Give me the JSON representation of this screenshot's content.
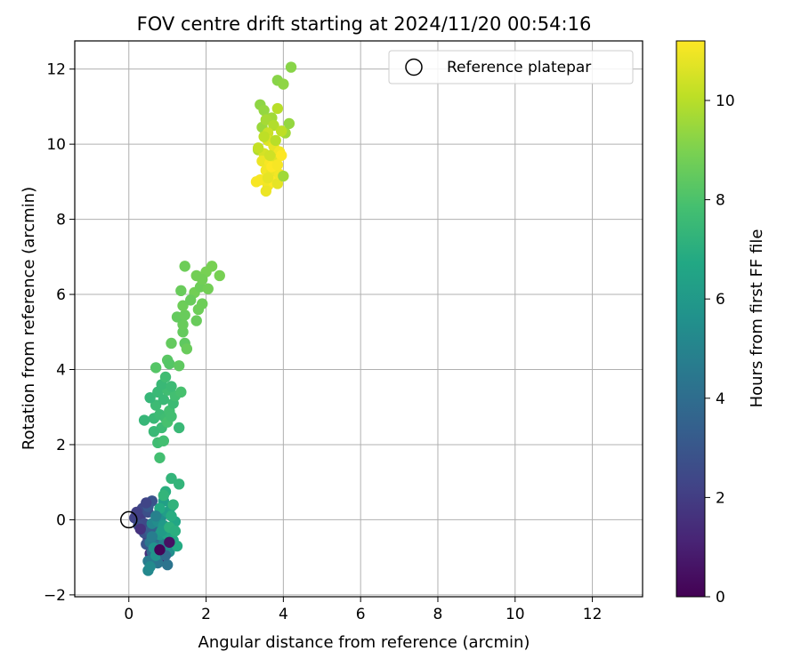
{
  "chart_data": {
    "type": "scatter",
    "title": "FOV centre drift starting at 2024/11/20 00:54:16",
    "xlabel": "Angular distance from reference (arcmin)",
    "ylabel": "Rotation from reference (arcmin)",
    "xlim": [
      -1.4,
      13.3
    ],
    "ylim": [
      -2.05,
      12.75
    ],
    "xticks": [
      0,
      2,
      4,
      6,
      8,
      10,
      12
    ],
    "yticks": [
      -2,
      0,
      2,
      4,
      6,
      8,
      10,
      12
    ],
    "grid": true,
    "legend": {
      "placement": "top-right",
      "entries": [
        "Reference platepar"
      ]
    },
    "reference_point": {
      "x": 0,
      "y": 0,
      "label": "Reference platepar"
    },
    "colorbar": {
      "label": "Hours from first FF file",
      "colormap": "viridis",
      "range": [
        0,
        11.2
      ],
      "ticks": [
        0,
        2,
        4,
        6,
        8,
        10
      ]
    },
    "series": [
      {
        "points": [
          {
            "x": 0.75,
            "y": -0.85,
            "c": 0.3
          },
          {
            "x": 1.0,
            "y": -0.8,
            "c": 0.6
          },
          {
            "x": 0.85,
            "y": -0.6,
            "c": 0.9
          },
          {
            "x": 0.6,
            "y": -0.7,
            "c": 1.2
          },
          {
            "x": 0.9,
            "y": -1.0,
            "c": 0.4
          },
          {
            "x": 0.7,
            "y": -0.4,
            "c": 1.0
          },
          {
            "x": 0.55,
            "y": -0.9,
            "c": 1.5
          },
          {
            "x": 0.95,
            "y": -0.5,
            "c": 0.8
          },
          {
            "x": 0.5,
            "y": -0.5,
            "c": 1.8
          },
          {
            "x": 0.65,
            "y": -0.2,
            "c": 1.4
          },
          {
            "x": 0.3,
            "y": 0.1,
            "c": 2.0
          },
          {
            "x": 0.15,
            "y": 0.05,
            "c": 2.2
          },
          {
            "x": 0.4,
            "y": -0.1,
            "c": 2.5
          },
          {
            "x": 0.35,
            "y": 0.3,
            "c": 2.4
          },
          {
            "x": 0.5,
            "y": 0.2,
            "c": 2.7
          },
          {
            "x": 0.6,
            "y": 0.5,
            "c": 2.9
          },
          {
            "x": 0.5,
            "y": 0.35,
            "c": 3.1
          },
          {
            "x": 0.4,
            "y": -0.35,
            "c": 2.8
          },
          {
            "x": 0.25,
            "y": -0.15,
            "c": 2.6
          },
          {
            "x": 0.45,
            "y": -0.65,
            "c": 3.0
          },
          {
            "x": 0.55,
            "y": -0.3,
            "c": 3.3
          },
          {
            "x": 0.7,
            "y": -0.55,
            "c": 3.5
          },
          {
            "x": 0.6,
            "y": -0.85,
            "c": 3.8
          },
          {
            "x": 0.8,
            "y": -0.25,
            "c": 3.6
          },
          {
            "x": 0.65,
            "y": -1.05,
            "c": 4.0
          },
          {
            "x": 0.85,
            "y": -0.9,
            "c": 4.2
          },
          {
            "x": 0.75,
            "y": -1.15,
            "c": 4.4
          },
          {
            "x": 0.5,
            "y": -1.1,
            "c": 4.6
          },
          {
            "x": 0.7,
            "y": -0.7,
            "c": 4.1
          },
          {
            "x": 0.9,
            "y": -0.65,
            "c": 4.8
          },
          {
            "x": 0.55,
            "y": -0.6,
            "c": 4.5
          },
          {
            "x": 0.95,
            "y": -0.35,
            "c": 5.0
          },
          {
            "x": 1.0,
            "y": -1.2,
            "c": 4.3
          },
          {
            "x": 0.5,
            "y": -1.35,
            "c": 5.2
          },
          {
            "x": 0.6,
            "y": -0.1,
            "c": 5.1
          },
          {
            "x": 0.75,
            "y": -0.05,
            "c": 5.4
          },
          {
            "x": 0.85,
            "y": 0.1,
            "c": 5.6
          },
          {
            "x": 0.55,
            "y": -1.25,
            "c": 5.3
          },
          {
            "x": 0.65,
            "y": -0.75,
            "c": 5.7
          },
          {
            "x": 0.8,
            "y": -0.4,
            "c": 5.9
          },
          {
            "x": 1.05,
            "y": -0.85,
            "c": 5.5
          },
          {
            "x": 0.7,
            "y": -0.95,
            "c": 5.8
          },
          {
            "x": 0.9,
            "y": -0.15,
            "c": 6.0
          },
          {
            "x": 1.0,
            "y": 0.2,
            "c": 6.2
          },
          {
            "x": 1.1,
            "y": 0.35,
            "c": 6.4
          },
          {
            "x": 0.9,
            "y": 0.5,
            "c": 6.3
          },
          {
            "x": 1.2,
            "y": -0.05,
            "c": 6.6
          },
          {
            "x": 1.0,
            "y": -0.4,
            "c": 6.5
          },
          {
            "x": 1.15,
            "y": -0.55,
            "c": 6.7
          },
          {
            "x": 1.25,
            "y": -0.7,
            "c": 6.8
          },
          {
            "x": 0.85,
            "y": -0.3,
            "c": 6.1
          },
          {
            "x": 1.1,
            "y": 0.1,
            "c": 6.9
          },
          {
            "x": 0.95,
            "y": 0.75,
            "c": 7.0
          },
          {
            "x": 1.05,
            "y": -0.2,
            "c": 7.1
          },
          {
            "x": 1.15,
            "y": 0.4,
            "c": 7.2
          },
          {
            "x": 0.9,
            "y": 0.65,
            "c": 7.3
          },
          {
            "x": 1.1,
            "y": 1.1,
            "c": 7.3
          },
          {
            "x": 1.3,
            "y": 0.95,
            "c": 7.3
          },
          {
            "x": 0.8,
            "y": 0.3,
            "c": 6.8
          },
          {
            "x": 1.2,
            "y": -0.3,
            "c": 7.0
          },
          {
            "x": 0.6,
            "y": -0.45,
            "c": 4.7
          },
          {
            "x": 0.45,
            "y": 0.45,
            "c": 2.3
          },
          {
            "x": 0.3,
            "y": -0.25,
            "c": 1.6
          },
          {
            "x": 0.2,
            "y": 0.2,
            "c": 2.1
          },
          {
            "x": 0.7,
            "y": 0.1,
            "c": 4.9
          },
          {
            "x": 0.95,
            "y": -0.95,
            "c": 3.9
          },
          {
            "x": 0.8,
            "y": -0.8,
            "c": 0.1
          },
          {
            "x": 1.05,
            "y": -0.6,
            "c": 0.5
          },
          {
            "x": 0.8,
            "y": 1.65,
            "c": 7.8
          },
          {
            "x": 0.75,
            "y": 2.05,
            "c": 7.7
          },
          {
            "x": 0.9,
            "y": 2.1,
            "c": 7.8
          },
          {
            "x": 0.85,
            "y": 2.45,
            "c": 7.6
          },
          {
            "x": 1.3,
            "y": 2.45,
            "c": 7.5
          },
          {
            "x": 0.65,
            "y": 2.7,
            "c": 7.5
          },
          {
            "x": 0.8,
            "y": 2.8,
            "c": 7.6
          },
          {
            "x": 0.95,
            "y": 2.7,
            "c": 7.7
          },
          {
            "x": 1.05,
            "y": 2.9,
            "c": 7.8
          },
          {
            "x": 0.7,
            "y": 3.05,
            "c": 7.6
          },
          {
            "x": 0.9,
            "y": 3.2,
            "c": 7.5
          },
          {
            "x": 1.15,
            "y": 3.1,
            "c": 7.6
          },
          {
            "x": 0.55,
            "y": 3.25,
            "c": 7.4
          },
          {
            "x": 0.75,
            "y": 3.4,
            "c": 7.5
          },
          {
            "x": 1.0,
            "y": 3.45,
            "c": 7.7
          },
          {
            "x": 1.2,
            "y": 3.3,
            "c": 7.8
          },
          {
            "x": 1.35,
            "y": 3.4,
            "c": 7.9
          },
          {
            "x": 0.85,
            "y": 3.6,
            "c": 7.5
          },
          {
            "x": 1.1,
            "y": 3.55,
            "c": 7.6
          },
          {
            "x": 0.95,
            "y": 3.8,
            "c": 7.7
          },
          {
            "x": 0.4,
            "y": 2.65,
            "c": 7.4
          },
          {
            "x": 1.0,
            "y": 2.6,
            "c": 7.9
          },
          {
            "x": 0.65,
            "y": 2.35,
            "c": 7.5
          },
          {
            "x": 1.1,
            "y": 2.75,
            "c": 7.8
          },
          {
            "x": 0.7,
            "y": 4.05,
            "c": 8.2
          },
          {
            "x": 1.0,
            "y": 4.25,
            "c": 8.3
          },
          {
            "x": 1.05,
            "y": 4.15,
            "c": 8.2
          },
          {
            "x": 1.3,
            "y": 4.1,
            "c": 8.4
          },
          {
            "x": 1.1,
            "y": 4.7,
            "c": 8.5
          },
          {
            "x": 1.45,
            "y": 4.7,
            "c": 8.4
          },
          {
            "x": 1.5,
            "y": 4.55,
            "c": 8.6
          },
          {
            "x": 1.4,
            "y": 5.0,
            "c": 8.5
          },
          {
            "x": 1.4,
            "y": 5.2,
            "c": 8.6
          },
          {
            "x": 1.25,
            "y": 5.4,
            "c": 8.5
          },
          {
            "x": 1.45,
            "y": 5.45,
            "c": 8.6
          },
          {
            "x": 1.4,
            "y": 5.7,
            "c": 8.7
          },
          {
            "x": 1.75,
            "y": 5.3,
            "c": 8.6
          },
          {
            "x": 1.8,
            "y": 5.6,
            "c": 8.7
          },
          {
            "x": 1.9,
            "y": 5.75,
            "c": 8.7
          },
          {
            "x": 1.35,
            "y": 6.1,
            "c": 8.6
          },
          {
            "x": 1.7,
            "y": 6.05,
            "c": 8.8
          },
          {
            "x": 1.85,
            "y": 6.2,
            "c": 8.7
          },
          {
            "x": 2.05,
            "y": 6.15,
            "c": 8.8
          },
          {
            "x": 1.75,
            "y": 6.5,
            "c": 8.8
          },
          {
            "x": 2.0,
            "y": 6.6,
            "c": 8.9
          },
          {
            "x": 2.15,
            "y": 6.75,
            "c": 8.9
          },
          {
            "x": 1.45,
            "y": 6.75,
            "c": 8.7
          },
          {
            "x": 2.35,
            "y": 6.5,
            "c": 8.9
          },
          {
            "x": 1.9,
            "y": 6.4,
            "c": 8.8
          },
          {
            "x": 1.6,
            "y": 5.85,
            "c": 8.6
          },
          {
            "x": 3.4,
            "y": 11.05,
            "c": 9.3
          },
          {
            "x": 3.5,
            "y": 10.9,
            "c": 9.4
          },
          {
            "x": 3.85,
            "y": 11.7,
            "c": 9.2
          },
          {
            "x": 4.0,
            "y": 11.6,
            "c": 9.3
          },
          {
            "x": 4.2,
            "y": 12.05,
            "c": 9.2
          },
          {
            "x": 3.85,
            "y": 10.95,
            "c": 10.0
          },
          {
            "x": 3.7,
            "y": 10.7,
            "c": 9.6
          },
          {
            "x": 3.45,
            "y": 10.45,
            "c": 9.5
          },
          {
            "x": 3.55,
            "y": 10.65,
            "c": 9.7
          },
          {
            "x": 3.75,
            "y": 10.5,
            "c": 9.9
          },
          {
            "x": 4.05,
            "y": 10.3,
            "c": 9.6
          },
          {
            "x": 4.15,
            "y": 10.55,
            "c": 9.4
          },
          {
            "x": 3.95,
            "y": 10.35,
            "c": 10.1
          },
          {
            "x": 3.6,
            "y": 10.3,
            "c": 10.3
          },
          {
            "x": 3.35,
            "y": 9.85,
            "c": 9.8
          },
          {
            "x": 3.5,
            "y": 9.75,
            "c": 10.5
          },
          {
            "x": 3.6,
            "y": 10.1,
            "c": 10.6
          },
          {
            "x": 3.75,
            "y": 9.95,
            "c": 10.8
          },
          {
            "x": 3.9,
            "y": 9.8,
            "c": 11.0
          },
          {
            "x": 3.45,
            "y": 9.55,
            "c": 10.9
          },
          {
            "x": 3.65,
            "y": 9.5,
            "c": 11.1
          },
          {
            "x": 3.8,
            "y": 9.6,
            "c": 10.7
          },
          {
            "x": 3.95,
            "y": 9.7,
            "c": 11.2
          },
          {
            "x": 3.55,
            "y": 9.3,
            "c": 11.0
          },
          {
            "x": 3.7,
            "y": 9.25,
            "c": 10.9
          },
          {
            "x": 3.4,
            "y": 9.05,
            "c": 11.1
          },
          {
            "x": 3.6,
            "y": 8.9,
            "c": 11.0
          },
          {
            "x": 3.75,
            "y": 9.0,
            "c": 11.2
          },
          {
            "x": 3.85,
            "y": 8.95,
            "c": 10.8
          },
          {
            "x": 3.55,
            "y": 8.75,
            "c": 10.9
          },
          {
            "x": 3.3,
            "y": 9.0,
            "c": 11.1
          },
          {
            "x": 3.9,
            "y": 9.2,
            "c": 11.0
          },
          {
            "x": 4.0,
            "y": 9.15,
            "c": 9.6
          },
          {
            "x": 3.35,
            "y": 9.9,
            "c": 10.2
          },
          {
            "x": 3.65,
            "y": 9.7,
            "c": 10.4
          },
          {
            "x": 3.8,
            "y": 10.1,
            "c": 10.0
          },
          {
            "x": 3.5,
            "y": 10.2,
            "c": 10.1
          },
          {
            "x": 3.7,
            "y": 9.4,
            "c": 11.2
          },
          {
            "x": 3.85,
            "y": 9.45,
            "c": 11.1
          },
          {
            "x": 3.6,
            "y": 9.1,
            "c": 10.8
          }
        ]
      }
    ]
  }
}
